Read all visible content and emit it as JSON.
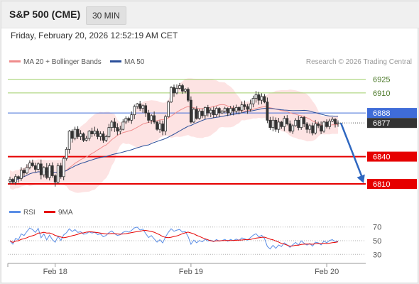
{
  "header": {
    "title": "S&P 500 (CME)",
    "interval": "30 MIN",
    "timestamp": "Friday, February 20, 2026 12:52:19 AM CET",
    "credit": "Research © 2026 Trading Central"
  },
  "colors": {
    "price_line": "#3f6cd8",
    "target_red": "#e60000",
    "green_line": "#9fcf6a",
    "bollinger_fill": "#fde3e3",
    "ma20": "#ef8c8c",
    "ma50": "#2b4f9a",
    "candle": "#333333",
    "rsi": "#5b8ee6",
    "rsi_ma": "#e60000",
    "arrow": "#2f67c0",
    "last_price_bg": "#333333"
  },
  "chart_data": [
    {
      "type": "candlestick",
      "name": "price",
      "legend": [
        {
          "label": "MA 20 + Bollinger Bands",
          "color": "#ef8c8c"
        },
        {
          "label": "MA 50",
          "color": "#2b4f9a"
        }
      ],
      "x_ticks": [
        "Feb 18",
        "Feb 19",
        "Feb 20"
      ],
      "x_tick_index": [
        16,
        64,
        112
      ],
      "ylim": [
        6803,
        6938
      ],
      "levels": [
        {
          "value": 6925,
          "label": "6925",
          "kind": "resistance",
          "color": "#9fcf6a"
        },
        {
          "value": 6910,
          "label": "6910",
          "kind": "resistance",
          "color": "#9fcf6a"
        },
        {
          "value": 6888,
          "label": "6888",
          "kind": "pivot",
          "color": "#3f6cd8"
        },
        {
          "value": 6877,
          "label": "6877",
          "kind": "last",
          "color": "#333333"
        },
        {
          "value": 6840,
          "label": "6840",
          "kind": "target",
          "color": "#e60000"
        },
        {
          "value": 6810,
          "label": "6810",
          "kind": "target",
          "color": "#e60000"
        }
      ],
      "arrow": {
        "from": 6877,
        "to": 6810
      },
      "close": [
        6815,
        6812,
        6818,
        6816,
        6825,
        6822,
        6828,
        6833,
        6830,
        6826,
        6832,
        6820,
        6828,
        6817,
        6830,
        6819,
        6812,
        6830,
        6818,
        6838,
        6848,
        6868,
        6860,
        6870,
        6862,
        6865,
        6858,
        6860,
        6868,
        6865,
        6868,
        6862,
        6865,
        6858,
        6862,
        6872,
        6878,
        6872,
        6868,
        6870,
        6878,
        6882,
        6880,
        6886,
        6895,
        6898,
        6893,
        6896,
        6888,
        6880,
        6885,
        6878,
        6870,
        6876,
        6868,
        6884,
        6900,
        6916,
        6910,
        6915,
        6918,
        6912,
        6914,
        6902,
        6878,
        6892,
        6882,
        6890,
        6885,
        6894,
        6888,
        6891,
        6886,
        6893,
        6888,
        6890,
        6893,
        6888,
        6893,
        6890,
        6894,
        6891,
        6897,
        6895,
        6892,
        6898,
        6904,
        6908,
        6902,
        6906,
        6900,
        6880,
        6872,
        6880,
        6870,
        6878,
        6873,
        6882,
        6876,
        6868,
        6874,
        6880,
        6872,
        6883,
        6876,
        6870,
        6874,
        6866,
        6876,
        6874,
        6868,
        6878,
        6873,
        6879,
        6881,
        6876,
        6877
      ]
    },
    {
      "type": "line",
      "name": "RSI",
      "legend": [
        {
          "label": "RSI",
          "color": "#5b8ee6"
        },
        {
          "label": "9MA",
          "color": "#e60000"
        }
      ],
      "ylim": [
        22,
        78
      ],
      "y_ticks": [
        70,
        50,
        30
      ]
    }
  ]
}
